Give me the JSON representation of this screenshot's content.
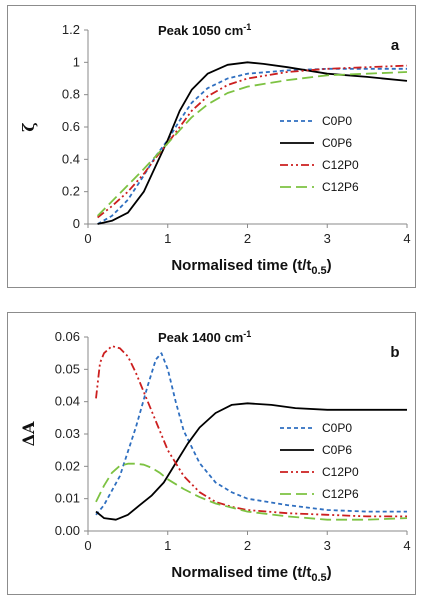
{
  "chart_data": [
    {
      "type": "line",
      "panel_label": "a",
      "title": "Peak 1050 cm",
      "title_sup": "-1",
      "ylabel": "ζ",
      "xlabel": "Normalised time (t/t",
      "xlabel_sub": "0.5",
      "xlabel_end": ")",
      "xlim": [
        0,
        4
      ],
      "ylim": [
        0,
        1.2
      ],
      "xticks": [
        "0",
        "1",
        "2",
        "3",
        "4"
      ],
      "yticks": [
        "0",
        "0.2",
        "0.4",
        "0.6",
        "0.8",
        "1",
        "1.2"
      ],
      "ytick_values": [
        0,
        0.2,
        0.4,
        0.6,
        0.8,
        1.0,
        1.2
      ],
      "grid": false,
      "legend_position": "right",
      "series": [
        {
          "name": "C0P0",
          "color": "#2f6fc0",
          "dash": "short-dash",
          "x": [
            0.12,
            0.3,
            0.5,
            0.7,
            0.85,
            1.0,
            1.15,
            1.3,
            1.5,
            1.75,
            2.0,
            2.5,
            3.0,
            3.5,
            4.0
          ],
          "y": [
            0.0,
            0.05,
            0.15,
            0.3,
            0.42,
            0.52,
            0.64,
            0.75,
            0.84,
            0.9,
            0.93,
            0.95,
            0.96,
            0.96,
            0.96
          ]
        },
        {
          "name": "C0P6",
          "color": "#000000",
          "dash": "solid",
          "x": [
            0.12,
            0.3,
            0.5,
            0.7,
            0.85,
            1.0,
            1.15,
            1.3,
            1.5,
            1.75,
            2.0,
            2.2,
            2.5,
            3.0,
            3.5,
            4.0
          ],
          "y": [
            0.0,
            0.02,
            0.07,
            0.2,
            0.36,
            0.52,
            0.7,
            0.83,
            0.93,
            0.985,
            1.0,
            0.99,
            0.97,
            0.93,
            0.91,
            0.885
          ]
        },
        {
          "name": "C12P0",
          "color": "#cc1f1f",
          "dash": "dash-dot-dot",
          "x": [
            0.12,
            0.3,
            0.5,
            0.7,
            0.85,
            1.0,
            1.15,
            1.3,
            1.5,
            1.75,
            2.0,
            2.5,
            3.0,
            3.5,
            4.0
          ],
          "y": [
            0.04,
            0.11,
            0.2,
            0.31,
            0.41,
            0.5,
            0.6,
            0.7,
            0.79,
            0.86,
            0.9,
            0.94,
            0.96,
            0.97,
            0.98
          ]
        },
        {
          "name": "C12P6",
          "color": "#7dc242",
          "dash": "long-dash",
          "x": [
            0.12,
            0.3,
            0.5,
            0.7,
            0.85,
            1.0,
            1.15,
            1.3,
            1.5,
            1.75,
            2.0,
            2.5,
            3.0,
            3.5,
            4.0
          ],
          "y": [
            0.05,
            0.14,
            0.24,
            0.34,
            0.42,
            0.5,
            0.58,
            0.66,
            0.74,
            0.81,
            0.85,
            0.89,
            0.92,
            0.93,
            0.94
          ]
        }
      ]
    },
    {
      "type": "line",
      "panel_label": "b",
      "title": "Peak 1400 cm",
      "title_sup": "-1",
      "ylabel": "ΔA",
      "xlabel": "Normalised time (t/t",
      "xlabel_sub": "0.5",
      "xlabel_end": ")",
      "xlim": [
        0,
        4
      ],
      "ylim": [
        0,
        0.06
      ],
      "xticks": [
        "0",
        "1",
        "2",
        "3",
        "4"
      ],
      "yticks": [
        "0.00",
        "0.01",
        "0.02",
        "0.03",
        "0.04",
        "0.05",
        "0.06"
      ],
      "ytick_values": [
        0,
        0.01,
        0.02,
        0.03,
        0.04,
        0.05,
        0.06
      ],
      "grid": false,
      "legend_position": "right",
      "series": [
        {
          "name": "C0P0",
          "color": "#2f6fc0",
          "dash": "short-dash",
          "x": [
            0.1,
            0.2,
            0.4,
            0.6,
            0.75,
            0.85,
            0.92,
            1.0,
            1.1,
            1.2,
            1.4,
            1.6,
            1.8,
            2.0,
            2.5,
            3.0,
            3.5,
            4.0
          ],
          "y": [
            0.005,
            0.008,
            0.017,
            0.032,
            0.045,
            0.053,
            0.055,
            0.05,
            0.04,
            0.031,
            0.021,
            0.015,
            0.012,
            0.01,
            0.008,
            0.0065,
            0.006,
            0.006
          ]
        },
        {
          "name": "C0P6",
          "color": "#000000",
          "dash": "solid",
          "x": [
            0.1,
            0.2,
            0.35,
            0.5,
            0.65,
            0.8,
            0.95,
            1.1,
            1.25,
            1.4,
            1.6,
            1.8,
            2.0,
            2.3,
            2.6,
            3.0,
            3.5,
            4.0
          ],
          "y": [
            0.006,
            0.004,
            0.0035,
            0.005,
            0.008,
            0.011,
            0.015,
            0.021,
            0.027,
            0.032,
            0.0365,
            0.039,
            0.0395,
            0.039,
            0.038,
            0.0375,
            0.0375,
            0.0375
          ]
        },
        {
          "name": "C12P0",
          "color": "#cc1f1f",
          "dash": "dash-dot-dot",
          "x": [
            0.1,
            0.15,
            0.2,
            0.3,
            0.4,
            0.5,
            0.6,
            0.7,
            0.8,
            0.9,
            1.0,
            1.2,
            1.4,
            1.6,
            1.8,
            2.0,
            2.5,
            3.0,
            3.5,
            4.0
          ],
          "y": [
            0.041,
            0.052,
            0.055,
            0.0572,
            0.0565,
            0.054,
            0.049,
            0.043,
            0.037,
            0.031,
            0.025,
            0.017,
            0.012,
            0.009,
            0.0075,
            0.0065,
            0.0055,
            0.005,
            0.0045,
            0.0045
          ]
        },
        {
          "name": "C12P6",
          "color": "#7dc242",
          "dash": "long-dash",
          "x": [
            0.1,
            0.2,
            0.3,
            0.4,
            0.5,
            0.6,
            0.7,
            0.8,
            0.9,
            1.0,
            1.2,
            1.4,
            1.6,
            2.0,
            2.5,
            3.0,
            3.5,
            4.0
          ],
          "y": [
            0.009,
            0.014,
            0.018,
            0.0202,
            0.0208,
            0.0208,
            0.0205,
            0.0195,
            0.018,
            0.016,
            0.013,
            0.0105,
            0.0085,
            0.006,
            0.0045,
            0.0035,
            0.0035,
            0.004
          ]
        }
      ]
    }
  ]
}
